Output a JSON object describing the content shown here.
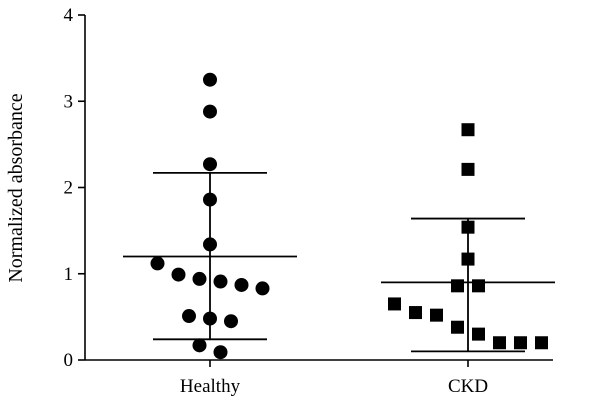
{
  "chart_data": {
    "type": "scatter",
    "title": "",
    "xlabel": "",
    "ylabel": "Normalized absorbance",
    "ylim": [
      0,
      4
    ],
    "yticks": [
      "0",
      "1",
      "2",
      "3",
      "4"
    ],
    "categories": [
      "Healthy",
      "CKD"
    ],
    "grid": false,
    "legend": "none",
    "series": [
      {
        "category": "Healthy",
        "marker": "circle",
        "color": "#000000",
        "values": [
          3.25,
          2.88,
          2.27,
          1.86,
          1.34,
          1.12,
          0.99,
          0.94,
          0.91,
          0.87,
          0.83,
          0.51,
          0.48,
          0.45,
          0.17,
          0.09
        ],
        "mean": 1.2,
        "sd_upper": 2.17,
        "sd_lower": 0.24
      },
      {
        "category": "CKD",
        "marker": "square",
        "color": "#000000",
        "values": [
          2.67,
          2.21,
          1.54,
          1.17,
          0.86,
          0.86,
          0.65,
          0.55,
          0.52,
          0.38,
          0.3,
          0.2,
          0.2,
          0.2
        ],
        "mean": 0.9,
        "sd_upper": 1.64,
        "sd_lower": 0.1
      }
    ]
  }
}
